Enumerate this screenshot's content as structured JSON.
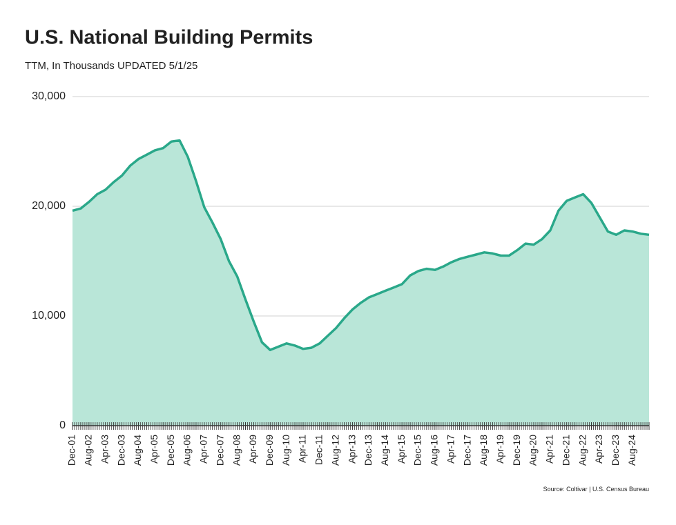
{
  "chart_data": {
    "type": "area",
    "title": "U.S. National Building Permits",
    "subtitle": "TTM, In Thousands  UPDATED 5/1/25",
    "source": "Source: Coltivar | U.S. Census Bureau",
    "color": "#2aa88a",
    "fill": "#b9e6d8",
    "grid": true,
    "categories": [
      "Dec-01",
      null,
      "Aug-02",
      null,
      "Apr-03",
      null,
      "Dec-03",
      null,
      "Aug-04",
      null,
      "Apr-05",
      null,
      "Dec-05",
      null,
      "Aug-06",
      null,
      "Apr-07",
      null,
      "Dec-07",
      null,
      "Aug-08",
      null,
      "Apr-09",
      null,
      "Dec-09",
      null,
      "Aug-10",
      null,
      "Apr-11",
      null,
      "Dec-11",
      null,
      "Aug-12",
      null,
      "Apr-13",
      null,
      "Dec-13",
      null,
      "Aug-14",
      null,
      "Apr-15",
      null,
      "Dec-15",
      null,
      "Aug-16",
      null,
      "Apr-17",
      null,
      "Dec-17",
      null,
      "Aug-18",
      null,
      "Apr-19",
      null,
      "Dec-19",
      null,
      "Aug-20",
      null,
      "Apr-21",
      null,
      "Dec-21",
      null,
      "Aug-22",
      null,
      "Apr-23",
      null,
      "Dec-23",
      null,
      "Aug-24",
      null,
      null
    ],
    "values": [
      19600,
      19800,
      20400,
      21100,
      21500,
      22200,
      22800,
      23700,
      24300,
      24700,
      25100,
      25300,
      25900,
      26000,
      24500,
      22300,
      19900,
      18500,
      17000,
      15000,
      13600,
      11500,
      9500,
      7600,
      6900,
      7200,
      7500,
      7300,
      7000,
      7100,
      7500,
      8200,
      8900,
      9800,
      10600,
      11200,
      11700,
      12000,
      12300,
      12600,
      12900,
      13700,
      14100,
      14300,
      14200,
      14500,
      14900,
      15200,
      15400,
      15600,
      15800,
      15700,
      15500,
      15500,
      16000,
      16600,
      16500,
      17000,
      17800,
      19600,
      20500,
      20800,
      21100,
      20300,
      19000,
      17700,
      17400,
      17800,
      17700,
      17500,
      17400
    ],
    "ylim": [
      0,
      30000
    ],
    "yticks": [
      0,
      {
        "value": 10000,
        "label": "10,000"
      },
      {
        "value": 20000,
        "label": "20,000"
      },
      {
        "value": 30000,
        "label": "30,000"
      }
    ]
  }
}
